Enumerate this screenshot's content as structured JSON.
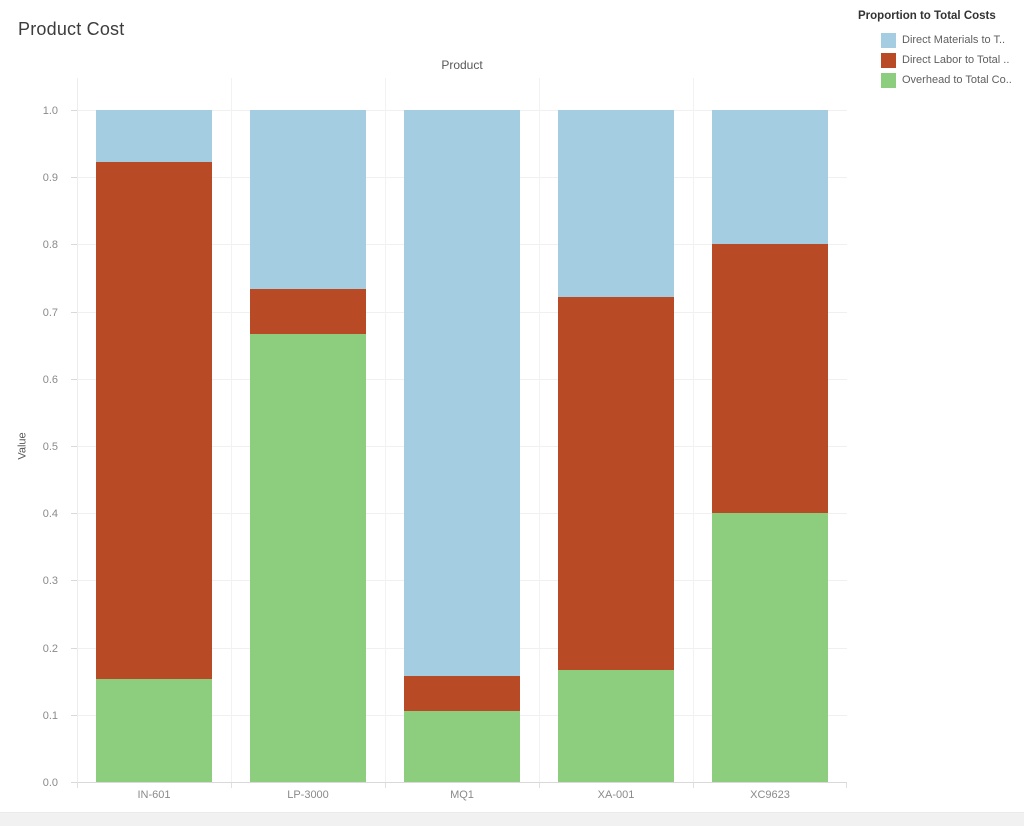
{
  "title": "Product Cost",
  "legend": {
    "title": "Proportion to Total Costs",
    "items": [
      {
        "label": "Direct Materials to T..",
        "color": "#a5cde2"
      },
      {
        "label": "Direct Labor to Total ..",
        "color": "#b84a25"
      },
      {
        "label": "Overhead to Total Co..",
        "color": "#8cce7d"
      }
    ]
  },
  "chart_data": {
    "type": "bar",
    "stacked": true,
    "title": "Product Cost",
    "column_header": "Product",
    "ylabel": "Value",
    "categories": [
      "IN-601",
      "LP-3000",
      "MQ1",
      "XA-001",
      "XC9623"
    ],
    "series": [
      {
        "name": "Overhead to Total Costs",
        "color": "#8cce7d",
        "values": [
          0.154,
          0.667,
          0.105,
          0.167,
          0.4
        ]
      },
      {
        "name": "Direct Labor to Total Costs",
        "color": "#b84a25",
        "values": [
          0.769,
          0.066,
          0.053,
          0.555,
          0.4
        ]
      },
      {
        "name": "Direct Materials to Total Costs",
        "color": "#a5cde2",
        "values": [
          0.077,
          0.267,
          0.842,
          0.278,
          0.2
        ]
      }
    ],
    "ylim": [
      0.0,
      1.0
    ],
    "y_ticks": [
      0.0,
      0.1,
      0.2,
      0.3,
      0.4,
      0.5,
      0.6,
      0.7,
      0.8,
      0.9,
      1.0
    ],
    "grid": true,
    "legend_position": "top-right"
  }
}
